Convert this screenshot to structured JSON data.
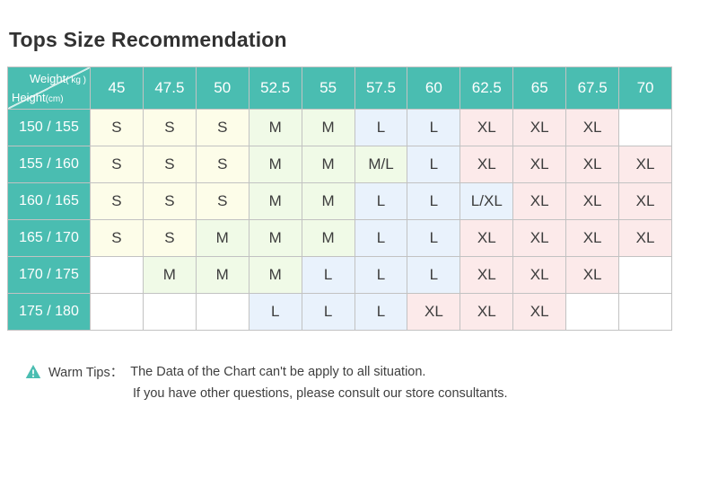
{
  "page": {
    "title": "Tops Size Recommendation"
  },
  "colors": {
    "header_teal": "#4ABDB1",
    "size_fills": {
      "S": "#FDFDE9",
      "M": "#F0FAE7",
      "M/L": "#F0FAE7",
      "L": "#E9F2FC",
      "L/XL": "#E9F2FC",
      "XL": "#FCEAEA",
      "": "#FFFFFF"
    }
  },
  "table": {
    "corner": {
      "top_label": "Weight",
      "top_unit": "( kg )",
      "bottom_label": "Height",
      "bottom_unit": "(cm)"
    },
    "weight_columns": [
      "45",
      "47.5",
      "50",
      "52.5",
      "55",
      "57.5",
      "60",
      "62.5",
      "65",
      "67.5",
      "70"
    ],
    "rows": [
      {
        "height": "150 / 155",
        "sizes": [
          "S",
          "S",
          "S",
          "M",
          "M",
          "L",
          "L",
          "XL",
          "XL",
          "XL",
          ""
        ]
      },
      {
        "height": "155 / 160",
        "sizes": [
          "S",
          "S",
          "S",
          "M",
          "M",
          "M/L",
          "L",
          "XL",
          "XL",
          "XL",
          "XL"
        ]
      },
      {
        "height": "160 / 165",
        "sizes": [
          "S",
          "S",
          "S",
          "M",
          "M",
          "L",
          "L",
          "L/XL",
          "XL",
          "XL",
          "XL"
        ]
      },
      {
        "height": "165 / 170",
        "sizes": [
          "S",
          "S",
          "M",
          "M",
          "M",
          "L",
          "L",
          "XL",
          "XL",
          "XL",
          "XL"
        ]
      },
      {
        "height": "170 / 175",
        "sizes": [
          "",
          "M",
          "M",
          "M",
          "L",
          "L",
          "L",
          "XL",
          "XL",
          "XL",
          ""
        ]
      },
      {
        "height": "175 / 180",
        "sizes": [
          "",
          "",
          "",
          "L",
          "L",
          "L",
          "XL",
          "XL",
          "XL",
          "",
          ""
        ]
      }
    ]
  },
  "tips": {
    "label": "Warm Tips：",
    "line1": "The Data of the Chart can't be apply to all situation.",
    "line2": "If you have other questions, please consult our store consultants."
  },
  "chart_data": {
    "type": "table",
    "title": "Tops Size Recommendation",
    "x_header": "Weight(kg)",
    "y_header": "Height(cm)",
    "columns": [
      45,
      47.5,
      50,
      52.5,
      55,
      57.5,
      60,
      62.5,
      65,
      67.5,
      70
    ],
    "rows": [
      "150/155",
      "155/160",
      "160/165",
      "165/170",
      "170/175",
      "175/180"
    ],
    "values": [
      [
        "S",
        "S",
        "S",
        "M",
        "M",
        "L",
        "L",
        "XL",
        "XL",
        "XL",
        null
      ],
      [
        "S",
        "S",
        "S",
        "M",
        "M",
        "M/L",
        "L",
        "XL",
        "XL",
        "XL",
        "XL"
      ],
      [
        "S",
        "S",
        "S",
        "M",
        "M",
        "L",
        "L",
        "L/XL",
        "XL",
        "XL",
        "XL"
      ],
      [
        "S",
        "S",
        "M",
        "M",
        "M",
        "L",
        "L",
        "XL",
        "XL",
        "XL",
        "XL"
      ],
      [
        null,
        "M",
        "M",
        "M",
        "L",
        "L",
        "L",
        "XL",
        "XL",
        "XL",
        null
      ],
      [
        null,
        null,
        null,
        "L",
        "L",
        "L",
        "XL",
        "XL",
        "XL",
        null,
        null
      ]
    ],
    "legend_colors": {
      "S": "#FDFDE9",
      "M": "#F0FAE7",
      "L": "#E9F2FC",
      "XL": "#FCEAEA"
    }
  }
}
